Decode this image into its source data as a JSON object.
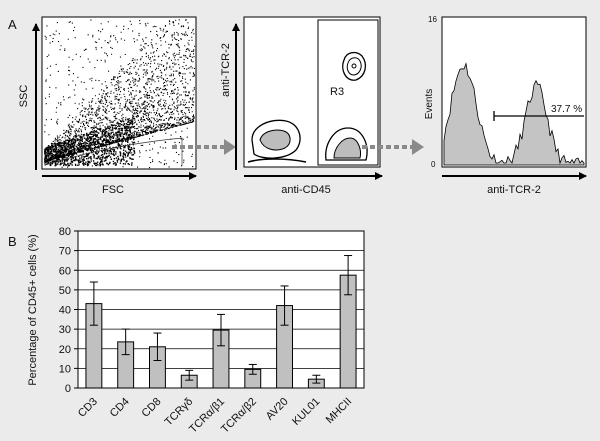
{
  "panel_a": {
    "letter": "A",
    "scatter": {
      "ylabel": "SSC",
      "xlabel": "FSC"
    },
    "contour": {
      "ylabel": "anti-TCR-2",
      "xlabel": "anti-CD45",
      "gate_label": "R3"
    },
    "histogram": {
      "ylabel": "Events",
      "xlabel": "anti-TCR-2",
      "y_max_label": "16",
      "y_min_label": "0",
      "marker_percent": "37.7 %"
    }
  },
  "chart_data": {
    "type": "bar",
    "panel_letter": "B",
    "ylabel": "Percentage of CD45+ cells (%)",
    "ylim": [
      0,
      80
    ],
    "yticks": [
      0,
      10,
      20,
      30,
      40,
      50,
      60,
      70,
      80
    ],
    "categories": [
      "CD3",
      "CD4",
      "CD8",
      "TCRγδ",
      "TCRα/β1",
      "TCRα/β2",
      "AV20",
      "KUL01",
      "MHCII"
    ],
    "values": [
      43,
      23.5,
      21,
      6.5,
      29.5,
      9.5,
      42,
      4.5,
      57.5
    ],
    "errors": [
      11,
      6.5,
      7,
      2.5,
      8,
      2.5,
      10,
      2,
      10
    ],
    "colors": {
      "bar": "#c0c0c0",
      "frame": "#000000"
    }
  }
}
